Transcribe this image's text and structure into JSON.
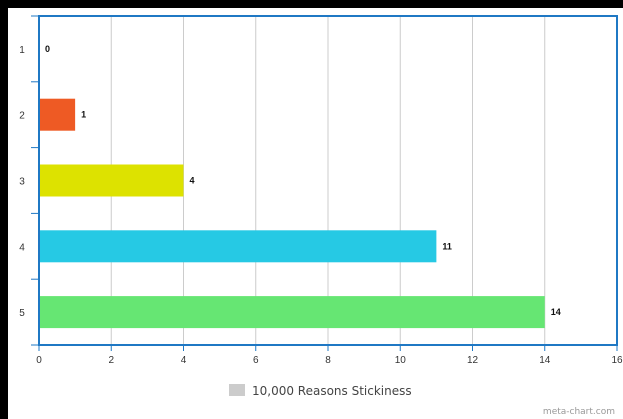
{
  "chart_data": {
    "type": "bar",
    "orientation": "horizontal",
    "categories": [
      "1",
      "2",
      "3",
      "4",
      "5"
    ],
    "values": [
      0,
      1,
      4,
      11,
      14
    ],
    "series": [
      {
        "name": "10,000 Reasons Stickiness",
        "values": [
          0,
          1,
          4,
          11,
          14
        ]
      }
    ],
    "bar_colors": [
      "#e8e8e8",
      "#ee5a24",
      "#dde200",
      "#26c9e4",
      "#66e673"
    ],
    "xlim": [
      0,
      16
    ],
    "x_ticks": [
      0,
      2,
      4,
      6,
      8,
      10,
      12,
      14,
      16
    ],
    "grid": true,
    "legend": {
      "position": "bottom",
      "swatch_color": "#cccccc"
    },
    "title": "",
    "xlabel": "",
    "ylabel": ""
  },
  "legend_label": "10,000 Reasons Stickiness",
  "credit": "meta-chart.com",
  "colors": {
    "frame": "#1f78c4",
    "grid": "#cccccc",
    "background": "#ffffff"
  }
}
